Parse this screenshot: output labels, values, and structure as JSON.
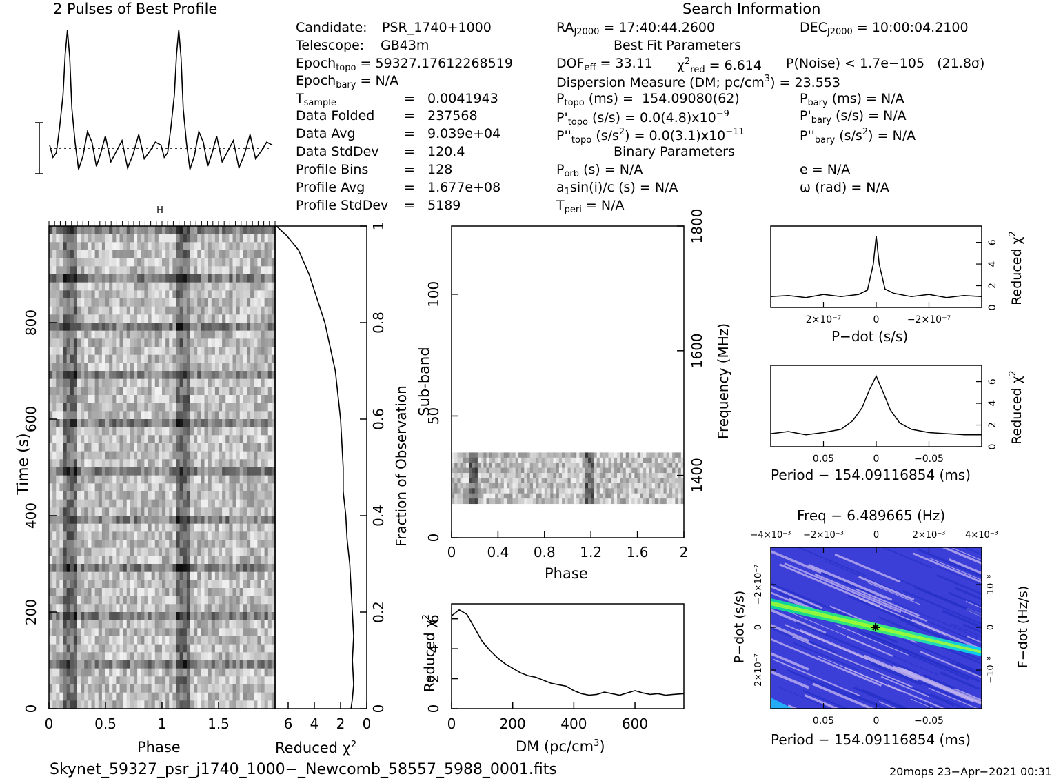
{
  "header": {
    "profile_title": "2 Pulses of Best Profile",
    "search_title": "Search Information"
  },
  "candidate_info": {
    "candidate_label": "Candidate:",
    "candidate_value": "PSR_1740+1000",
    "telescope_label": "Telescope:",
    "telescope_value": "GB43m",
    "epoch_topo_label": "Epoch",
    "epoch_topo_sub": "topo",
    "epoch_topo_value": "= 59327.17612268519",
    "epoch_bary_label": "Epoch",
    "epoch_bary_sub": "bary",
    "epoch_bary_value": "= N/A",
    "tsample_label": "T",
    "tsample_sub": "sample",
    "tsample_value": "=   0.0041943",
    "data_folded_label": "Data Folded",
    "data_folded_value": "=   237568",
    "data_avg_label": "Data Avg",
    "data_avg_value": "=   9.039e+04",
    "data_stddev_label": "Data StdDev",
    "data_stddev_value": "=   120.4",
    "profile_bins_label": "Profile Bins",
    "profile_bins_value": "=   128",
    "profile_avg_label": "Profile Avg",
    "profile_avg_value": "=   1.677e+08",
    "profile_stddev_label": "Profile StdDev",
    "profile_stddev_value": "=   5189"
  },
  "search_info": {
    "ra_label": "RA",
    "ra_sub": "J2000",
    "ra_value": "= 17:40:44.2600",
    "dec_label": "DEC",
    "dec_sub": "J2000",
    "dec_value": "= 10:00:04.2100",
    "best_fit_title": "Best Fit Parameters",
    "dof_label": "DOF",
    "dof_sub": "eff",
    "dof_value": "= 33.11",
    "chi_label": "χ",
    "chi_sup": "2",
    "chi_sub": "red",
    "chi_value": "= 6.614",
    "pnoise_text": "P(Noise) < 1.7e−105   (21.8σ)",
    "dm_text": "Dispersion Measure (DM; pc/cm",
    "dm_sup": "3",
    "dm_value": ") = 23.553",
    "ptopo_label": "P",
    "ptopo_sub": "topo",
    "ptopo_value": "(ms) =  154.09080(62)",
    "pbary_label": "P",
    "pbary_sub": "bary",
    "pbary_value": "(ms) = N/A",
    "pdtopo_label": "P'",
    "pdtopo_sub": "topo",
    "pdtopo_value": "(s/s) = 0.0(4.8)x10",
    "pdtopo_exp": "−9",
    "pdbary_label": "P'",
    "pdbary_sub": "bary",
    "pdbary_value": "(s/s) = N/A",
    "pddtopo_label": "P''",
    "pddtopo_sub": "topo",
    "pddtopo_value": "(s/s",
    "pddtopo_unit_sup": "2",
    "pddtopo_value2": ") = 0.0(3.1)x10",
    "pddtopo_exp": "−11",
    "pddbary_label": "P''",
    "pddbary_sub": "bary",
    "pddbary_value": "(s/s",
    "pddbary_unit_sup": "2",
    "pddbary_value2": ") = N/A",
    "binary_title": "Binary Parameters",
    "porb_label": "P",
    "porb_sub": "orb",
    "porb_value": "(s) = N/A",
    "e_text": "e = N/A",
    "a1_text": "a",
    "a1_sub": "1",
    "a1_value": "sin(i)/c (s) = N/A",
    "omega_text": "ω (rad) = N/A",
    "tperi_label": "T",
    "tperi_sub": "peri",
    "tperi_value": "= N/A"
  },
  "footer": {
    "filename": "Skynet_59327_psr_j1740_1000−_Newcomb_58557_5988_0001.fits",
    "stamp": "20mops 23−Apr−2021 00:31"
  },
  "colors": {
    "ink": "#000000",
    "grid_low": "#3030e0",
    "grid_mid": "#9aa8ff",
    "grid_hi": "#00ff80",
    "ridge": "#ffd400"
  },
  "chart_data": [
    {
      "type": "line",
      "name": "profile",
      "title": "2 Pulses of Best Profile",
      "x_phase": [
        0.0,
        0.03,
        0.06,
        0.09,
        0.12,
        0.14,
        0.16,
        0.18,
        0.2,
        0.23,
        0.26,
        0.3,
        0.34,
        0.38,
        0.42,
        0.46,
        0.5,
        0.55,
        0.6,
        0.65,
        0.7,
        0.75,
        0.8,
        0.85,
        0.9,
        0.95,
        1.0,
        1.03,
        1.06,
        1.09,
        1.12,
        1.14,
        1.16,
        1.18,
        1.2,
        1.23,
        1.26,
        1.3,
        1.34,
        1.38,
        1.42,
        1.46,
        1.5,
        1.55,
        1.6,
        1.65,
        1.7,
        1.75,
        1.8,
        1.85,
        1.9,
        1.95,
        2.0
      ],
      "y_sigma": [
        0.2,
        -0.6,
        -0.3,
        1.4,
        3.5,
        6.2,
        7.8,
        6.0,
        2.6,
        0.3,
        -1.4,
        -0.5,
        1.1,
        0.4,
        -1.2,
        -0.3,
        0.8,
        -0.9,
        -0.2,
        0.5,
        -1.3,
        -0.4,
        0.9,
        -0.7,
        -0.2,
        0.4,
        0.2,
        -0.6,
        -0.3,
        1.4,
        3.5,
        6.2,
        7.8,
        6.0,
        2.6,
        0.3,
        -1.4,
        -0.5,
        1.1,
        0.4,
        -1.2,
        -0.3,
        0.8,
        -0.9,
        -0.2,
        0.5,
        -1.3,
        -0.4,
        0.9,
        -0.7,
        -0.2,
        0.4,
        0.2
      ]
    },
    {
      "type": "heatmap",
      "name": "time-phase",
      "xlabel": "Phase",
      "ylabel": "Time (s)",
      "xlim": [
        0,
        2
      ],
      "ylim": [
        0,
        1000
      ],
      "xticks": [
        "0",
        "0.5",
        "1",
        "1.5"
      ],
      "yticks": [
        "0",
        "200",
        "400",
        "600",
        "800"
      ],
      "pulse_phases": [
        0.17,
        1.17
      ]
    },
    {
      "type": "line",
      "name": "chi-vs-time",
      "xlabel": "Reduced χ",
      "xlabel_sup": "2",
      "ylabel": "Fraction of Observation",
      "xlim": [
        7,
        0
      ],
      "ylim": [
        0,
        1
      ],
      "xticks": [
        "6",
        "4",
        "2",
        "0"
      ],
      "yticks": [
        "0",
        "0.2",
        "0.4",
        "0.6",
        "0.8",
        "1"
      ],
      "x": [
        1.2,
        1.1,
        1.0,
        1.1,
        1.0,
        1.1,
        1.2,
        1.3,
        1.5,
        1.6,
        1.8,
        1.8,
        1.9,
        2.0,
        2.2,
        2.4,
        2.8,
        3.2,
        3.8,
        4.4,
        5.2,
        6.1,
        6.9
      ],
      "y": [
        0.0,
        0.02,
        0.05,
        0.1,
        0.15,
        0.2,
        0.25,
        0.3,
        0.35,
        0.4,
        0.45,
        0.5,
        0.55,
        0.6,
        0.65,
        0.7,
        0.75,
        0.8,
        0.85,
        0.9,
        0.95,
        0.98,
        1.0
      ]
    },
    {
      "type": "heatmap",
      "name": "subband-phase",
      "xlabel": "Phase",
      "ylabel": "Sub-band",
      "y2label": "Frequency (MHz)",
      "xlim": [
        0,
        2
      ],
      "ylim": [
        0,
        128
      ],
      "y2lim": [
        1300,
        1800
      ],
      "xticks": [
        "0",
        "0.4",
        "0.8",
        "1.2",
        "1.6",
        "2"
      ],
      "yticks": [
        "0",
        "50",
        "100"
      ],
      "y2ticks": [
        "1400",
        "1600",
        "1800"
      ],
      "occupied_subbands": [
        14,
        35
      ]
    },
    {
      "type": "line",
      "name": "dm-curve",
      "xlabel": "DM (pc/cm",
      "xlabel_sup": "3",
      "xlabel_end": ")",
      "ylabel": "Reduced χ",
      "ylabel_sup": "2",
      "xlim": [
        0,
        760
      ],
      "ylim": [
        0,
        7
      ],
      "xticks": [
        "0",
        "200",
        "400",
        "600"
      ],
      "yticks": [
        "0",
        "2",
        "4",
        "6"
      ],
      "x": [
        0,
        25,
        50,
        75,
        100,
        125,
        150,
        175,
        200,
        225,
        250,
        275,
        300,
        325,
        350,
        375,
        400,
        425,
        450,
        475,
        500,
        525,
        550,
        575,
        600,
        625,
        650,
        675,
        700,
        725,
        760
      ],
      "y": [
        6.2,
        6.6,
        6.3,
        5.4,
        4.5,
        3.9,
        3.4,
        3.0,
        2.7,
        2.4,
        2.2,
        2.1,
        1.9,
        1.7,
        1.6,
        1.5,
        1.2,
        1.0,
        0.9,
        0.95,
        1.1,
        1.0,
        0.9,
        1.05,
        1.2,
        1.05,
        0.95,
        1.0,
        0.9,
        0.95,
        1.0
      ]
    },
    {
      "type": "line",
      "name": "pdot-curve",
      "xlabel": "P−dot (s/s)",
      "ylabel": "Reduced χ",
      "ylabel_sup": "2",
      "xlim": [
        3.6e-07,
        -3.6e-07
      ],
      "ylim": [
        0,
        7.5
      ],
      "xticks": [
        "2×10⁻⁷",
        "0",
        "−2×10⁻⁷"
      ],
      "yticks": [
        "0",
        "2",
        "4",
        "6"
      ],
      "x": [
        3.6e-07,
        3e-07,
        2.4e-07,
        1.8e-07,
        1.2e-07,
        6e-08,
        3e-08,
        1e-08,
        0,
        -1e-08,
        -3e-08,
        -6e-08,
        -1.2e-07,
        -1.8e-07,
        -2.4e-07,
        -3e-07,
        -3.6e-07
      ],
      "y": [
        1.0,
        1.1,
        0.9,
        1.2,
        1.0,
        1.2,
        1.6,
        4.0,
        6.6,
        4.0,
        1.7,
        1.3,
        1.0,
        1.2,
        0.9,
        1.1,
        1.0
      ]
    },
    {
      "type": "line",
      "name": "period-curve",
      "xlabel": "Period − 154.09116854 (ms)",
      "ylabel": "Reduced χ",
      "ylabel_sup": "2",
      "xlim": [
        0.09,
        -0.09
      ],
      "ylim": [
        0,
        7.5
      ],
      "xticks": [
        "0.05",
        "0",
        "−0.05"
      ],
      "yticks": [
        "0",
        "2",
        "4",
        "6"
      ],
      "x": [
        0.09,
        0.075,
        0.06,
        0.045,
        0.03,
        0.02,
        0.012,
        0.006,
        0.0,
        -0.006,
        -0.012,
        -0.02,
        -0.03,
        -0.045,
        -0.06,
        -0.075,
        -0.09
      ],
      "y": [
        1.2,
        1.4,
        1.1,
        1.3,
        1.6,
        2.4,
        3.6,
        5.2,
        6.5,
        5.0,
        3.4,
        2.2,
        1.6,
        1.3,
        1.2,
        1.1,
        1.1
      ]
    },
    {
      "type": "heatmap",
      "name": "period-pdot-plane",
      "title": "Freq − 6.489665 (Hz)",
      "xlabel": "Period − 154.09116854 (ms)",
      "ylabel": "P−dot (s/s)",
      "y2label": "F−dot (Hz/s)",
      "xlim": [
        0.09,
        -0.09
      ],
      "ylim": [
        2.6e-07,
        -2.6e-07
      ],
      "xticks": [
        "0.05",
        "0",
        "−0.05"
      ],
      "yticks": [
        "−2×10⁻⁷",
        "0",
        "2×10⁻⁷"
      ],
      "x2ticks": [
        "−4×10⁻³",
        "−2×10⁻³",
        "0",
        "2×10⁻³",
        "4×10⁻³"
      ],
      "y2ticks": [
        "10⁻⁸",
        "0",
        "−10⁻⁸"
      ],
      "best_fit": [
        0,
        0
      ]
    }
  ]
}
